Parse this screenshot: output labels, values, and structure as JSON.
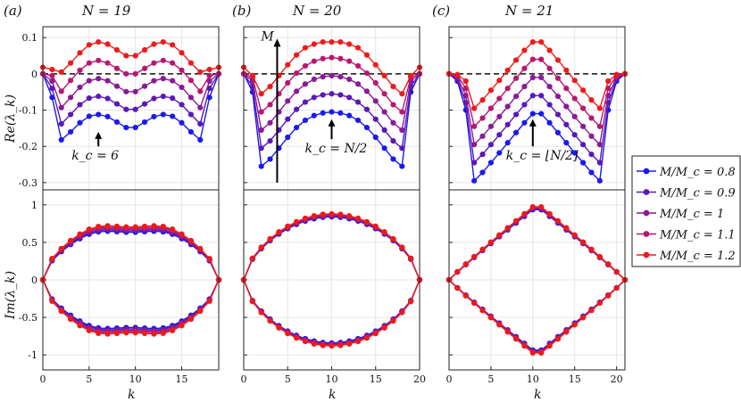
{
  "chart_data": [
    {
      "type": "line",
      "panel": "(a)",
      "title": "N = 19",
      "N": 19,
      "xlim": [
        0,
        19
      ],
      "xticks": [
        0,
        5,
        10,
        15
      ],
      "xlabel": "k",
      "re": {
        "ylabel": "Re(λ_k)",
        "ylim": [
          -0.32,
          0.13
        ],
        "yticks": [
          0.1,
          0,
          -0.1,
          -0.2,
          -0.3
        ],
        "annotation": {
          "text": "k_c = 6",
          "x": 6,
          "y_from": -0.2,
          "y_to": -0.16
        },
        "x": [
          0,
          1,
          2,
          3,
          4,
          5,
          6,
          7,
          8,
          9,
          10,
          11,
          12,
          13,
          14,
          15,
          16,
          17,
          18,
          19
        ],
        "series": [
          {
            "name": "M/M_c = 0.8",
            "values": [
              0,
              -0.065,
              -0.182,
              -0.16,
              -0.135,
              -0.117,
              -0.112,
              -0.118,
              -0.133,
              -0.148,
              -0.148,
              -0.133,
              -0.118,
              -0.112,
              -0.117,
              -0.135,
              -0.16,
              -0.182,
              -0.065,
              0
            ]
          },
          {
            "name": "M/M_c = 0.9",
            "values": [
              0,
              -0.04,
              -0.138,
              -0.112,
              -0.085,
              -0.067,
              -0.062,
              -0.068,
              -0.083,
              -0.098,
              -0.098,
              -0.083,
              -0.068,
              -0.062,
              -0.067,
              -0.085,
              -0.112,
              -0.138,
              -0.04,
              0
            ]
          },
          {
            "name": "M/M_c = 1",
            "values": [
              0,
              -0.02,
              -0.093,
              -0.065,
              -0.037,
              -0.019,
              -0.013,
              -0.019,
              -0.034,
              -0.049,
              -0.049,
              -0.034,
              -0.019,
              -0.013,
              -0.019,
              -0.037,
              -0.065,
              -0.093,
              -0.02,
              0
            ]
          },
          {
            "name": "M/M_c = 1.1",
            "values": [
              0,
              -0.005,
              -0.048,
              -0.018,
              0.01,
              0.03,
              0.037,
              0.03,
              0.015,
              0,
              0,
              0.015,
              0.03,
              0.037,
              0.03,
              0.01,
              -0.018,
              -0.048,
              -0.005,
              0
            ]
          },
          {
            "name": "M/M_c = 1.2",
            "values": [
              0.018,
              0.012,
              0.005,
              0.03,
              0.058,
              0.08,
              0.088,
              0.082,
              0.066,
              0.05,
              0.05,
              0.066,
              0.082,
              0.088,
              0.08,
              0.058,
              0.03,
              0.005,
              0.012,
              0.018
            ]
          }
        ]
      },
      "im": {
        "ylabel": "Im(λ_k)",
        "ylim": [
          -1.2,
          1.2
        ],
        "yticks": [
          1,
          0.5,
          0,
          -0.5,
          -1
        ],
        "shape": "peanut",
        "amp": [
          0.72,
          0.74,
          0.76,
          0.78,
          0.8
        ],
        "dip": 0.12
      }
    },
    {
      "type": "line",
      "panel": "(b)",
      "title": "N = 20",
      "N": 20,
      "xlim": [
        0,
        20
      ],
      "xticks": [
        0,
        5,
        10,
        15,
        20
      ],
      "xlabel": "k",
      "re": {
        "ylim": [
          -0.32,
          0.13
        ],
        "yticks": [
          0.1,
          0,
          -0.1,
          -0.2,
          -0.3
        ],
        "annotation": {
          "text": "k_c = N/2",
          "x": 10,
          "y_from": -0.18,
          "y_to": -0.125
        },
        "arrow_label": "M",
        "x": [
          0,
          1,
          2,
          3,
          4,
          5,
          6,
          7,
          8,
          9,
          10,
          11,
          12,
          13,
          14,
          15,
          16,
          17,
          18,
          19,
          20
        ],
        "series": [
          {
            "name": "M/M_c = 0.8",
            "values": [
              0,
              -0.05,
              -0.255,
              -0.235,
              -0.205,
              -0.175,
              -0.148,
              -0.128,
              -0.115,
              -0.108,
              -0.105,
              -0.108,
              -0.115,
              -0.128,
              -0.148,
              -0.175,
              -0.205,
              -0.235,
              -0.255,
              -0.05,
              0
            ]
          },
          {
            "name": "M/M_c = 0.9",
            "values": [
              0,
              -0.035,
              -0.205,
              -0.185,
              -0.155,
              -0.125,
              -0.098,
              -0.078,
              -0.065,
              -0.058,
              -0.055,
              -0.058,
              -0.065,
              -0.078,
              -0.098,
              -0.125,
              -0.155,
              -0.185,
              -0.205,
              -0.035,
              0
            ]
          },
          {
            "name": "M/M_c = 1",
            "values": [
              0,
              -0.02,
              -0.155,
              -0.135,
              -0.105,
              -0.075,
              -0.048,
              -0.028,
              -0.015,
              -0.008,
              -0.005,
              -0.008,
              -0.015,
              -0.028,
              -0.048,
              -0.075,
              -0.105,
              -0.135,
              -0.155,
              -0.02,
              0
            ]
          },
          {
            "name": "M/M_c = 1.1",
            "values": [
              0,
              -0.01,
              -0.105,
              -0.085,
              -0.055,
              -0.025,
              0.002,
              0.022,
              0.035,
              0.042,
              0.045,
              0.042,
              0.035,
              0.022,
              0.002,
              -0.025,
              -0.055,
              -0.085,
              -0.105,
              -0.01,
              0
            ]
          },
          {
            "name": "M/M_c = 1.2",
            "values": [
              0.018,
              -0.005,
              -0.055,
              -0.035,
              -0.005,
              0.025,
              0.052,
              0.072,
              0.082,
              0.088,
              0.088,
              0.088,
              0.082,
              0.072,
              0.052,
              0.025,
              -0.005,
              -0.035,
              -0.055,
              -0.005,
              0.018
            ]
          }
        ]
      },
      "im": {
        "ylim": [
          -1.2,
          1.2
        ],
        "yticks": [
          1,
          0.5,
          0,
          -0.5,
          -1
        ],
        "shape": "round",
        "amp": [
          0.84,
          0.85,
          0.86,
          0.87,
          0.88
        ]
      }
    },
    {
      "type": "line",
      "panel": "(c)",
      "title": "N = 21",
      "N": 21,
      "xlim": [
        0,
        21
      ],
      "xticks": [
        0,
        5,
        10,
        15,
        20
      ],
      "xlabel": "k",
      "re": {
        "ylim": [
          -0.32,
          0.13
        ],
        "yticks": [
          0.1,
          0,
          -0.1,
          -0.2,
          -0.3
        ],
        "annotation": {
          "text": "k_c = ⌊N/2⌋",
          "x": 10,
          "y_from": -0.2,
          "y_to": -0.125
        },
        "x": [
          0,
          1,
          2,
          3,
          4,
          5,
          6,
          7,
          8,
          9,
          10,
          11,
          12,
          13,
          14,
          15,
          16,
          17,
          18,
          19,
          20,
          21
        ],
        "series": [
          {
            "name": "M/M_c = 0.8",
            "values": [
              0,
              -0.02,
              -0.1,
              -0.295,
              -0.272,
              -0.245,
              -0.218,
              -0.19,
              -0.162,
              -0.135,
              -0.11,
              -0.11,
              -0.135,
              -0.162,
              -0.19,
              -0.218,
              -0.245,
              -0.272,
              -0.295,
              -0.1,
              -0.02,
              0
            ]
          },
          {
            "name": "M/M_c = 0.9",
            "values": [
              0,
              -0.015,
              -0.08,
              -0.245,
              -0.222,
              -0.195,
              -0.168,
              -0.14,
              -0.112,
              -0.085,
              -0.06,
              -0.06,
              -0.085,
              -0.112,
              -0.14,
              -0.168,
              -0.195,
              -0.222,
              -0.245,
              -0.08,
              -0.015,
              0
            ]
          },
          {
            "name": "M/M_c = 1",
            "values": [
              0,
              -0.01,
              -0.06,
              -0.195,
              -0.172,
              -0.145,
              -0.118,
              -0.09,
              -0.062,
              -0.035,
              -0.01,
              -0.01,
              -0.035,
              -0.062,
              -0.09,
              -0.118,
              -0.145,
              -0.172,
              -0.195,
              -0.06,
              -0.01,
              0
            ]
          },
          {
            "name": "M/M_c = 1.1",
            "values": [
              0,
              -0.005,
              -0.04,
              -0.145,
              -0.122,
              -0.095,
              -0.068,
              -0.04,
              -0.012,
              0.015,
              0.04,
              0.04,
              0.015,
              -0.012,
              -0.04,
              -0.068,
              -0.095,
              -0.122,
              -0.145,
              -0.04,
              -0.005,
              0
            ]
          },
          {
            "name": "M/M_c = 1.2",
            "values": [
              0,
              -0.002,
              -0.02,
              -0.095,
              -0.072,
              -0.045,
              -0.018,
              0.01,
              0.038,
              0.065,
              0.088,
              0.088,
              0.065,
              0.038,
              0.01,
              -0.018,
              -0.045,
              -0.072,
              -0.095,
              -0.02,
              -0.002,
              0
            ]
          }
        ]
      },
      "im": {
        "ylim": [
          -1.2,
          1.2
        ],
        "yticks": [
          1,
          0.5,
          0,
          -0.5,
          -1
        ],
        "shape": "diamond",
        "amp": [
          0.98,
          0.99,
          1.0,
          1.01,
          1.02
        ]
      }
    }
  ],
  "legend": {
    "entries": [
      "M/M_c = 0.8",
      "M/M_c = 0.9",
      "M/M_c = 1",
      "M/M_c = 1.1",
      "M/M_c = 1.2"
    ],
    "colors": [
      "#1a1aee",
      "#5a18b8",
      "#8a1a98",
      "#b81870",
      "#ee1a1a"
    ],
    "placement": "right"
  }
}
